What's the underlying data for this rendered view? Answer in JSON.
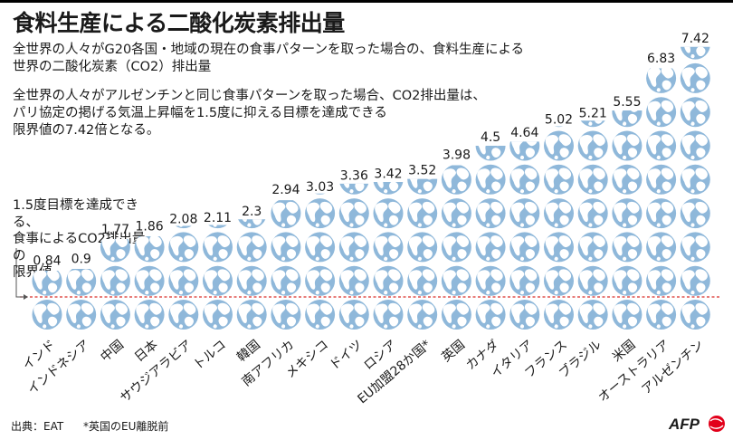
{
  "title": "食料生産による二酸化炭素排出量",
  "subtitle": "全世界の人々がG20各国・地域の現在の食事パターンを取った場合の、食料生産による\n世界の二酸化炭素（CO2）排出量",
  "note": "全世界の人々がアルゼンチンと同じ食事パターンを取った場合、CO2排出量は、\nパリ協定の掲げる気温上昇幅を1.5度に抑える目標を達成できる\n限界値の7.42倍となる。",
  "limit_label": "1.5度目標を達成できる、\n食事によるCO2排出量の\n限界値",
  "footer": {
    "source": "出典：EAT",
    "footnote": "*英国のEU離脱前"
  },
  "logo": {
    "text": "AFP"
  },
  "colors": {
    "globe_ocean": "#8fb8da",
    "globe_land": "#ffffff",
    "limit_line": "#d9302c",
    "text": "#1a1a1a",
    "logo_red": "#e2001a"
  },
  "chart_data": {
    "type": "bar",
    "unit": "globes",
    "baseline": 1,
    "categories": [
      "インド",
      "インドネシア",
      "中国",
      "日本",
      "サウジアラビア",
      "トルコ",
      "韓国",
      "南アフリカ",
      "メキシコ",
      "ドイツ",
      "ロシア",
      "EU加盟28か国*",
      "英国",
      "カナダ",
      "イタリア",
      "フランス",
      "ブラジル",
      "米国",
      "オーストラリア",
      "アルゼンチン"
    ],
    "values": [
      0.84,
      0.9,
      1.77,
      1.86,
      2.08,
      2.11,
      2.3,
      2.94,
      3.03,
      3.36,
      3.42,
      3.52,
      3.98,
      4.5,
      4.64,
      5.02,
      5.21,
      5.55,
      6.83,
      7.42
    ],
    "value_labels": [
      "0.84",
      "0.9",
      "1.77",
      "1.86",
      "2.08",
      "2.11",
      "2.3",
      "2.94",
      "3.03",
      "3.36",
      "3.42",
      "3.52",
      "3.98",
      "4.5",
      "4.64",
      "5.02",
      "5.21",
      "5.55",
      "6.83",
      "7.42"
    ],
    "ylim": [
      0,
      8
    ]
  }
}
